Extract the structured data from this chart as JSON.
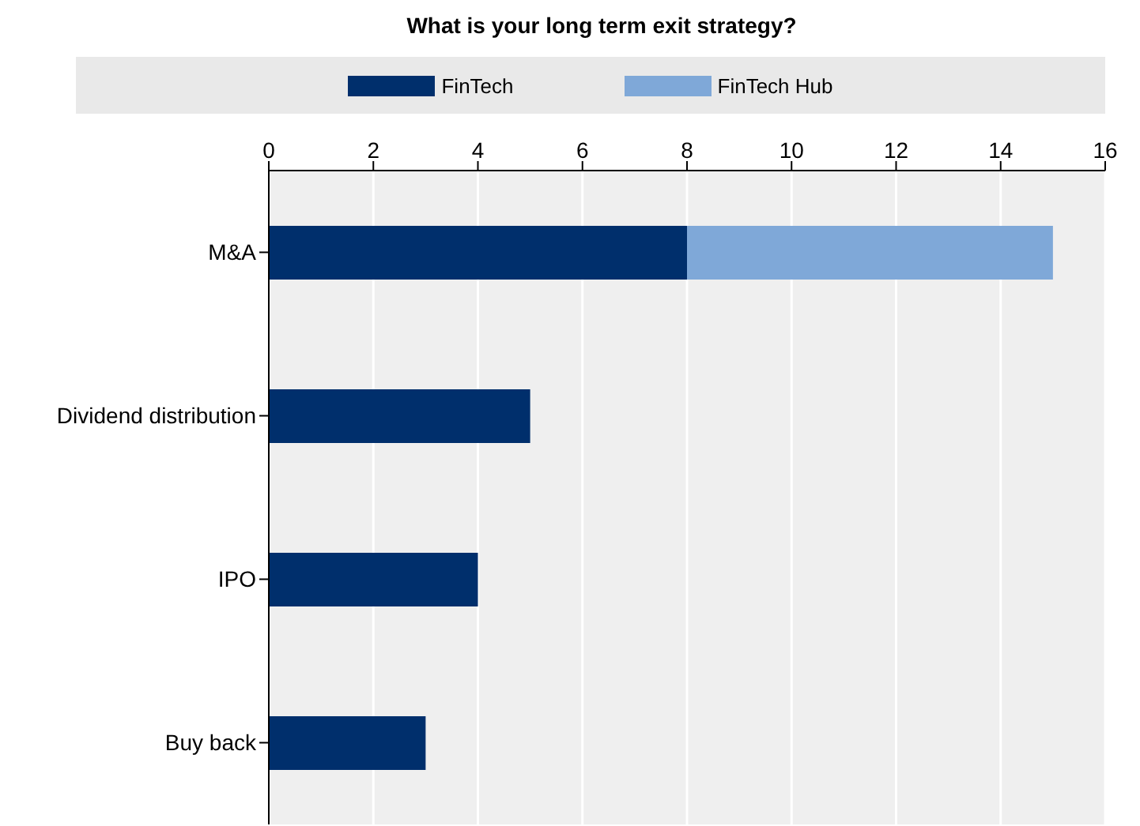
{
  "chart_data": {
    "type": "bar",
    "orientation": "horizontal",
    "stacked": true,
    "title": "What is your long term exit strategy?",
    "categories": [
      "M&A",
      "Dividend distribution",
      "IPO",
      "Buy back"
    ],
    "series": [
      {
        "name": "FinTech",
        "color": "#002f6c",
        "values": [
          8,
          5,
          4,
          3
        ]
      },
      {
        "name": "FinTech Hub",
        "color": "#7fa8d8",
        "values": [
          7,
          null,
          null,
          null
        ]
      }
    ],
    "xlim": [
      0,
      16
    ],
    "xticks": [
      0,
      2,
      4,
      6,
      8,
      10,
      12,
      14,
      16
    ],
    "grid": "x",
    "legend": "top"
  }
}
